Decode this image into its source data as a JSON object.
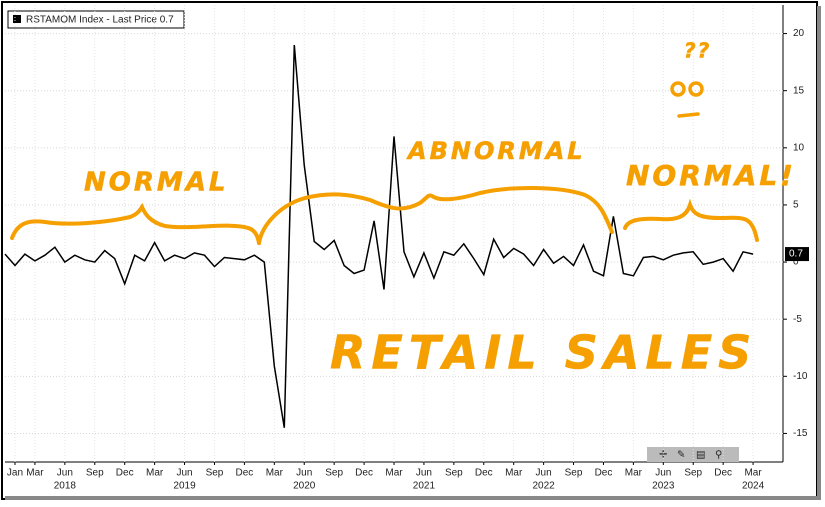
{
  "chart_data": {
    "type": "line",
    "series": [
      {
        "name": "RSTAMOM Index - Last Price 0.7",
        "color": "#000000",
        "values": [
          0.7,
          -0.3,
          0.7,
          0.1,
          0.6,
          1.3,
          0.0,
          0.6,
          0.2,
          0.0,
          1.0,
          0.3,
          -1.9,
          0.6,
          0.1,
          1.7,
          0.1,
          0.6,
          0.3,
          0.8,
          0.6,
          -0.4,
          0.4,
          0.3,
          0.2,
          0.6,
          0.0,
          -9.1,
          -14.5,
          19.0,
          8.5,
          1.8,
          1.1,
          1.9,
          -0.3,
          -1.0,
          -0.7,
          3.6,
          -2.4,
          11.0,
          0.9,
          -1.3,
          0.8,
          -1.4,
          0.9,
          0.6,
          1.6,
          0.3,
          -1.1,
          2.0,
          0.4,
          1.2,
          0.7,
          -0.3,
          1.1,
          -0.1,
          0.5,
          -0.3,
          1.5,
          -0.8,
          -1.2,
          4.0,
          -1.0,
          -1.2,
          0.4,
          0.5,
          0.2,
          0.6,
          0.8,
          0.9,
          -0.2,
          0.0,
          0.3,
          -0.8,
          0.9,
          0.7
        ]
      }
    ],
    "x": [
      "2017-12",
      "2018-01",
      "2018-02",
      "2018-03",
      "2018-04",
      "2018-05",
      "2018-06",
      "2018-07",
      "2018-08",
      "2018-09",
      "2018-10",
      "2018-11",
      "2018-12",
      "2019-01",
      "2019-02",
      "2019-03",
      "2019-04",
      "2019-05",
      "2019-06",
      "2019-07",
      "2019-08",
      "2019-09",
      "2019-10",
      "2019-11",
      "2019-12",
      "2020-01",
      "2020-02",
      "2020-03",
      "2020-04",
      "2020-05",
      "2020-06",
      "2020-07",
      "2020-08",
      "2020-09",
      "2020-10",
      "2020-11",
      "2020-12",
      "2021-01",
      "2021-02",
      "2021-03",
      "2021-04",
      "2021-05",
      "2021-06",
      "2021-07",
      "2021-08",
      "2021-09",
      "2021-10",
      "2021-11",
      "2021-12",
      "2022-01",
      "2022-02",
      "2022-03",
      "2022-04",
      "2022-05",
      "2022-06",
      "2022-07",
      "2022-08",
      "2022-09",
      "2022-10",
      "2022-11",
      "2022-12",
      "2023-01",
      "2023-02",
      "2023-03",
      "2023-04",
      "2023-05",
      "2023-06",
      "2023-07",
      "2023-08",
      "2023-09",
      "2023-10",
      "2023-11",
      "2023-12",
      "2024-01",
      "2024-02",
      "2024-03"
    ],
    "xlim": [
      "2017-12",
      "2024-06"
    ],
    "xticks": [
      {
        "value": "2018-01",
        "label": "Jan"
      },
      {
        "value": "2018-03",
        "label": "Mar"
      },
      {
        "value": "2018-06",
        "label": "Jun"
      },
      {
        "value": "2018-09",
        "label": "Sep"
      },
      {
        "value": "2018-12",
        "label": "Dec"
      },
      {
        "value": "2019-03",
        "label": "Mar"
      },
      {
        "value": "2019-06",
        "label": "Jun"
      },
      {
        "value": "2019-09",
        "label": "Sep"
      },
      {
        "value": "2019-12",
        "label": "Dec"
      },
      {
        "value": "2020-03",
        "label": "Mar"
      },
      {
        "value": "2020-06",
        "label": "Jun"
      },
      {
        "value": "2020-09",
        "label": "Sep"
      },
      {
        "value": "2020-12",
        "label": "Dec"
      },
      {
        "value": "2021-03",
        "label": "Mar"
      },
      {
        "value": "2021-06",
        "label": "Jun"
      },
      {
        "value": "2021-09",
        "label": "Sep"
      },
      {
        "value": "2021-12",
        "label": "Dec"
      },
      {
        "value": "2022-03",
        "label": "Mar"
      },
      {
        "value": "2022-06",
        "label": "Jun"
      },
      {
        "value": "2022-09",
        "label": "Sep"
      },
      {
        "value": "2022-12",
        "label": "Dec"
      },
      {
        "value": "2023-03",
        "label": "Mar"
      },
      {
        "value": "2023-06",
        "label": "Jun"
      },
      {
        "value": "2023-09",
        "label": "Sep"
      },
      {
        "value": "2023-12",
        "label": "Dec"
      },
      {
        "value": "2024-03",
        "label": "Mar"
      }
    ],
    "year_labels": [
      {
        "value": "2018-06",
        "label": "2018"
      },
      {
        "value": "2019-06",
        "label": "2019"
      },
      {
        "value": "2020-06",
        "label": "2020"
      },
      {
        "value": "2021-06",
        "label": "2021"
      },
      {
        "value": "2022-06",
        "label": "2022"
      },
      {
        "value": "2023-06",
        "label": "2023"
      },
      {
        "value": "2024-03",
        "label": "2024"
      }
    ],
    "ylim": [
      -17.5,
      22.5
    ],
    "yticks": [
      -15,
      -10,
      -5,
      0,
      5,
      10,
      15,
      20
    ],
    "grid": true,
    "last_price": 0.7,
    "annotation_color": "#f5a000",
    "annotations": [
      "NORMAL",
      "ABNORMAL",
      "NORMAL!",
      "RETAIL SALES",
      "??"
    ]
  }
}
